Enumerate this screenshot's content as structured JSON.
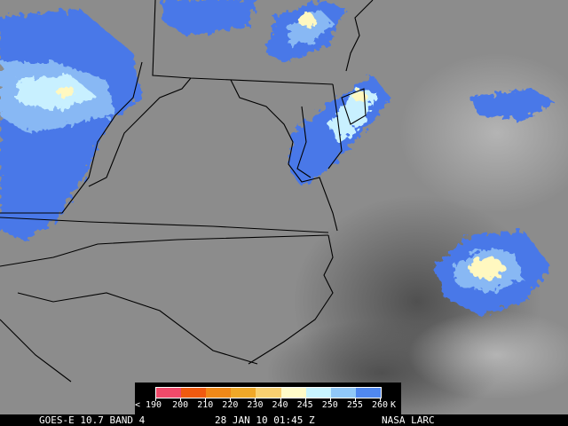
{
  "footer": {
    "satellite": "GOES-E 10.7 BAND 4",
    "datetime": "28 JAN 10 01:45 Z",
    "source": "NASA LARC"
  },
  "legend": {
    "unit": "K",
    "labels": [
      "< 190",
      "200",
      "210",
      "220",
      "230",
      "240",
      "245",
      "250",
      "255",
      "260"
    ],
    "colors": [
      "#f04a6a",
      "#f05a10",
      "#f08818",
      "#f0a828",
      "#f8d070",
      "#fffbc8",
      "#c8f4ff",
      "#90c8f8",
      "#5088f0"
    ]
  },
  "colors": {
    "land": "#8a8a8a",
    "ocean": "#5a5a5a",
    "borders": "#000000",
    "cloud_cold": "#4a78e8",
    "cloud_mid": "#88b8f4",
    "cloud_light": "#c8f0ff",
    "cloud_core": "#fff8c0"
  }
}
